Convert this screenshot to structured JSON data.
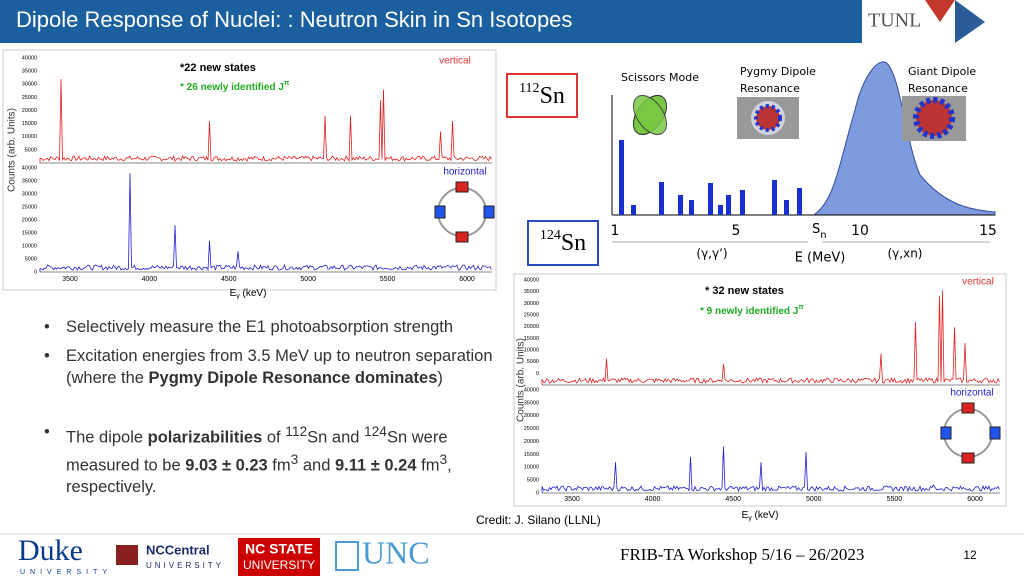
{
  "header": {
    "title": "Dipole Response of Nuclei: : Neutron Skin in Sn Isotopes",
    "logo": "TUNL"
  },
  "spectrum_112": {
    "top_label": "vertical",
    "bottom_label": "horizontal",
    "new_states": "22 new states",
    "newly_identified": "26 newly identified J",
    "newly_identified_sup": "π",
    "y_label": "Counts (arb. Units)",
    "x_label": "E",
    "x_label_sub": "γ",
    "x_label_unit": " (keV)",
    "xticks": [
      "3500",
      "4000",
      "4500",
      "5000",
      "5500",
      "6000"
    ],
    "yticks_top": [
      "40000",
      "35000",
      "30000",
      "25000",
      "20000",
      "15000",
      "10000",
      "5000"
    ],
    "yticks_bottom": [
      "40000",
      "35000",
      "30000",
      "25000",
      "20000",
      "15000",
      "10000",
      "5000",
      "0"
    ]
  },
  "spectrum_124": {
    "top_label": "vertical",
    "bottom_label": "horizontal",
    "new_states": "32 new states",
    "newly_identified": "9 newly identified J",
    "newly_identified_sup": "π",
    "y_label": "Counts (arb. Units)",
    "x_label": "E",
    "x_label_sub": "γ",
    "x_label_unit": " (keV)",
    "xticks": [
      "3500",
      "4000",
      "4500",
      "5000",
      "5500",
      "6000"
    ],
    "yticks_top": [
      "40000",
      "35000",
      "30000",
      "25000",
      "20000",
      "15000",
      "10000",
      "5000",
      "0"
    ],
    "yticks_bottom": [
      "40000",
      "35000",
      "30000",
      "25000",
      "20000",
      "15000",
      "10000",
      "5000",
      "0"
    ]
  },
  "isotopes": [
    {
      "mass": "112",
      "symbol": "Sn"
    },
    {
      "mass": "124",
      "symbol": "Sn"
    }
  ],
  "diagram": {
    "scissors": "Scissors Mode",
    "pygmy": [
      "Pygmy Dipole",
      "Resonance"
    ],
    "giant": [
      "Giant Dipole",
      "Resonance"
    ],
    "ticks": [
      "1",
      "5",
      "10",
      "15"
    ],
    "sn": "S",
    "sn_sub": "n",
    "gg": "(γ,γ’)",
    "xn": "(γ,xn)",
    "axis_label": "E (MeV)"
  },
  "bullets": [
    [
      "Selectively measure the E1 photoabsorption strength"
    ],
    [
      "Excitation energies from 3.5 MeV up to neutron separation (where the ",
      "Pygmy Dipole Resonance dominates",
      ")"
    ],
    [
      "The dipole ",
      "polarizabilities",
      " of ",
      "112",
      "Sn and ",
      "124",
      "Sn were measured to be ",
      "9.03 ± 0.23",
      " fm",
      "3",
      " and ",
      "9.11 ± 0.24",
      " fm",
      "3",
      ", respectively."
    ]
  ],
  "credit": "Credit: J. Silano (LLNL)",
  "footer": {
    "logos": [
      "Duke",
      "UNIVERSITY",
      "NCCentral",
      "UNIVERSITY",
      "NC STATE",
      "UNIVERSITY",
      "UNC"
    ],
    "event": "FRIB-TA Workshop 5/16 – 26/2023",
    "page": "12"
  }
}
